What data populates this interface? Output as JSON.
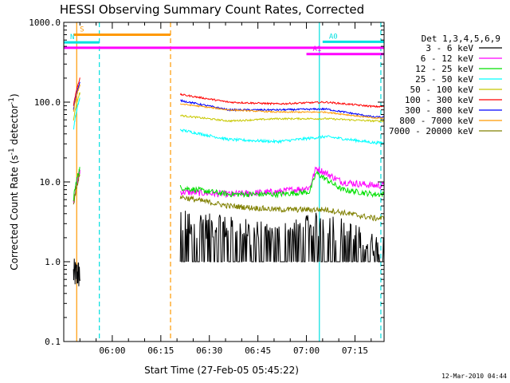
{
  "chart_data": {
    "type": "line",
    "title": "HESSI Observing Summary Count Rates, Corrected",
    "xlabel": "Start Time (27-Feb-05 05:45:22)",
    "ylabel_main": "Corrected Count Rate (s",
    "ylabel_sup1": "-1",
    "ylabel_mid": " detector",
    "ylabel_sup2": "-1",
    "ylabel_end": ")",
    "y_scale": "log",
    "ylim": [
      0.1,
      1000
    ],
    "xlim_minutes": [
      "05:45",
      "07:24"
    ],
    "x_ticks": [
      "06:00",
      "06:15",
      "06:30",
      "06:45",
      "07:00",
      "07:15"
    ],
    "y_ticks": [
      "1000.0",
      "100.0",
      "10.0",
      "1.0",
      "0.1"
    ],
    "legend_title": "Det 1,3,4,5,6,9",
    "legend_position": "right",
    "timestamp": "12-Mar-2010 04:44",
    "data_segments": [
      [
        "05:48",
        "05:50"
      ],
      [
        "06:21",
        "07:24"
      ]
    ],
    "series": [
      {
        "name": "3 - 6 keV",
        "color": "#000000",
        "start": 0.7,
        "seg2": [
          [
            0,
            3.0
          ],
          [
            15,
            2.5
          ],
          [
            30,
            2.0
          ],
          [
            45,
            3.0
          ],
          [
            60,
            1.5
          ]
        ],
        "noise": 0.45
      },
      {
        "name": "6 - 12 keV",
        "color": "#ff00ff",
        "start": 5.5,
        "seg2": [
          [
            0,
            7.5
          ],
          [
            15,
            7.0
          ],
          [
            30,
            7.5
          ],
          [
            40,
            8.5
          ],
          [
            42,
            15.0
          ],
          [
            50,
            10.0
          ],
          [
            60,
            9.0
          ]
        ],
        "noise": 0.1
      },
      {
        "name": "12 - 25 keV",
        "color": "#00e000",
        "start": 6.0,
        "seg2": [
          [
            0,
            8.5
          ],
          [
            15,
            7.0
          ],
          [
            30,
            7.0
          ],
          [
            40,
            7.5
          ],
          [
            42,
            13.0
          ],
          [
            50,
            8.0
          ],
          [
            60,
            7.0
          ]
        ],
        "noise": 0.08
      },
      {
        "name": "25 - 50 keV",
        "color": "#00ffff",
        "start": 45.0,
        "seg2": [
          [
            0,
            45
          ],
          [
            15,
            34
          ],
          [
            30,
            32
          ],
          [
            45,
            37
          ],
          [
            60,
            31
          ]
        ],
        "noise": 0.04
      },
      {
        "name": "50 - 100 keV",
        "color": "#c8c800",
        "start": 60.0,
        "seg2": [
          [
            0,
            68
          ],
          [
            15,
            58
          ],
          [
            30,
            62
          ],
          [
            45,
            62
          ],
          [
            60,
            58
          ]
        ],
        "noise": 0.025
      },
      {
        "name": "100 - 300 keV",
        "color": "#ff0000",
        "start": 90.0,
        "seg2": [
          [
            0,
            125
          ],
          [
            15,
            100
          ],
          [
            30,
            95
          ],
          [
            45,
            100
          ],
          [
            60,
            88
          ]
        ],
        "noise": 0.025
      },
      {
        "name": "300 - 800 keV",
        "color": "#0000ff",
        "start": 80.0,
        "seg2": [
          [
            0,
            105
          ],
          [
            15,
            80
          ],
          [
            30,
            80
          ],
          [
            45,
            82
          ],
          [
            60,
            65
          ]
        ],
        "noise": 0.025
      },
      {
        "name": "800 - 7000 keV",
        "color": "#ff9900",
        "start": 75.0,
        "seg2": [
          [
            0,
            95
          ],
          [
            15,
            80
          ],
          [
            30,
            75
          ],
          [
            45,
            75
          ],
          [
            60,
            63
          ]
        ],
        "noise": 0.02
      },
      {
        "name": "7000 - 20000 keV",
        "color": "#808000",
        "start": 5.0,
        "seg2": [
          [
            0,
            6.5
          ],
          [
            15,
            5.0
          ],
          [
            30,
            4.5
          ],
          [
            45,
            4.5
          ],
          [
            60,
            3.5
          ]
        ],
        "noise": 0.08
      }
    ],
    "flags": [
      {
        "label": "S",
        "color": "#ff9900",
        "value": 700,
        "x": [
          "05:48",
          "06:18"
        ]
      },
      {
        "label": "N",
        "color": "#00e0e0",
        "value": 560,
        "x": [
          "05:45",
          "05:56"
        ]
      },
      {
        "label": "",
        "color": "#ff00ff",
        "value": 480,
        "x": [
          "05:45",
          "07:24"
        ]
      },
      {
        "label": "A0",
        "color": "#00e0e0",
        "value": 570,
        "x": [
          "07:05",
          "07:24"
        ]
      },
      {
        "label": "A1",
        "color": "#ff00ff",
        "value": 400,
        "x": [
          "07:00",
          "07:24"
        ]
      }
    ],
    "markers": [
      {
        "color": "#ff9900",
        "style": "solid",
        "x": "05:49"
      },
      {
        "color": "#00e0e0",
        "style": "dashed",
        "x": "05:56"
      },
      {
        "color": "#ff9900",
        "style": "dashed",
        "x": "06:18"
      },
      {
        "color": "#00e0e0",
        "style": "solid",
        "x": "07:04"
      },
      {
        "color": "#00e0e0",
        "style": "dashed",
        "x": "07:23"
      }
    ]
  }
}
